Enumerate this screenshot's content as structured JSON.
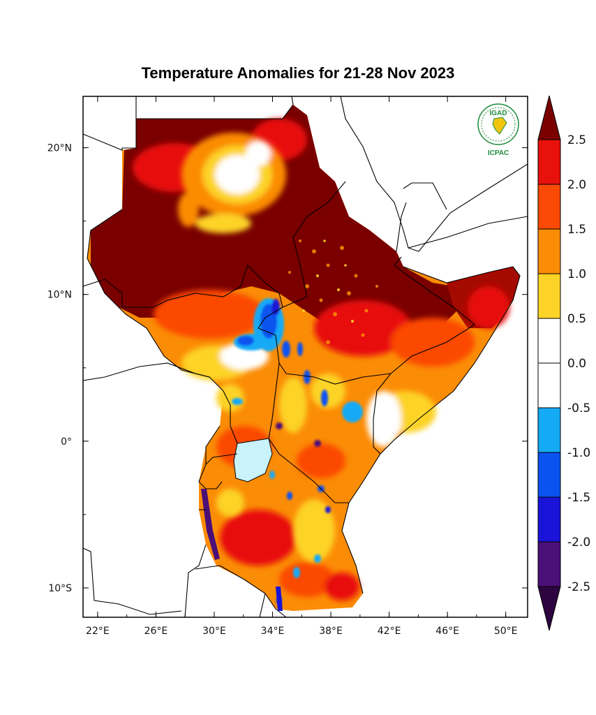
{
  "title": "Temperature Anomalies for 21-28 Nov 2023",
  "logo": {
    "top_text": "IGAD",
    "bottom_text": "ICPAC",
    "color": "#1e8a3a"
  },
  "map": {
    "lon_range": [
      21,
      51.5
    ],
    "lat_range": [
      -12,
      23.5
    ],
    "x_ticks": [
      {
        "value": 22,
        "label": "22°E"
      },
      {
        "value": 26,
        "label": "26°E"
      },
      {
        "value": 30,
        "label": "30°E"
      },
      {
        "value": 34,
        "label": "34°E"
      },
      {
        "value": 38,
        "label": "38°E"
      },
      {
        "value": 42,
        "label": "42°E"
      },
      {
        "value": 46,
        "label": "46°E"
      },
      {
        "value": 50,
        "label": "50°E"
      }
    ],
    "y_ticks": [
      {
        "value": 20,
        "label": "20°N"
      },
      {
        "value": 10,
        "label": "10°N"
      },
      {
        "value": 0,
        "label": "0°"
      },
      {
        "value": -10,
        "label": "10°S"
      }
    ]
  },
  "colorbar": {
    "levels": [
      "2.5",
      "2.0",
      "1.5",
      "1.0",
      "0.5",
      "0.0",
      "-0.5",
      "-1.0",
      "-1.5",
      "-2.0",
      "-2.5"
    ],
    "colors": {
      "above_2.5": "#7a0000",
      "2.0_2.5": "#e8110b",
      "1.5_2.0": "#fb4a06",
      "1.0_1.5": "#fb8c05",
      "0.5_1.0": "#fdd327",
      "-0.5_0.5": "#ffffff",
      "-1.0_-0.5": "#15aaf6",
      "-1.5_-1.0": "#0a53f0",
      "-2.0_-1.5": "#1a14d8",
      "-2.5_-2.0": "#4b0f78",
      "below_-2.5": "#2d0440"
    }
  }
}
